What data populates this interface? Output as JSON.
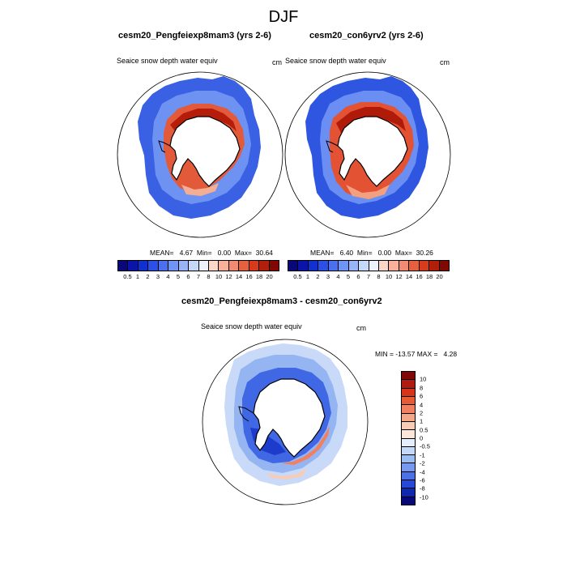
{
  "figure": {
    "season": "DJF"
  },
  "panels": [
    {
      "title": "cesm20_Pengfeiexp8mam3 (yrs 2-6)",
      "variable": "Seaice snow depth water equiv",
      "units": "cm",
      "stats": "MEAN=   4.67  Min=   0.00  Max=  30.64"
    },
    {
      "title": "cesm20_con6yrv2 (yrs 2-6)",
      "variable": "Seaice snow depth water equiv",
      "units": "cm",
      "stats": "MEAN=   6.40  Min=   0.00  Max=  30.26"
    }
  ],
  "diff_panel": {
    "title": "cesm20_Pengfeiexp8mam3 - cesm20_con6yrv2",
    "variable": "Seaice snow depth water equiv",
    "units": "cm",
    "stats": "MIN = -13.57 MAX =   4.28"
  },
  "colorbar_abs": {
    "ticks": [
      "0.5",
      "1",
      "2",
      "3",
      "4",
      "5",
      "6",
      "7",
      "8",
      "10",
      "12",
      "14",
      "16",
      "18",
      "20"
    ],
    "colors": [
      "#08087a",
      "#0a14a8",
      "#1030d0",
      "#2a50e6",
      "#4a70f0",
      "#7094f4",
      "#98b4f6",
      "#c4d8fa",
      "#eef2fc",
      "#fcd8c8",
      "#f8b09a",
      "#f08a70",
      "#e6603e",
      "#d83a1c",
      "#b01e0c",
      "#800800"
    ]
  },
  "colorbar_diff": {
    "ticks": [
      "10",
      "8",
      "6",
      "4",
      "2",
      "1",
      "0.5",
      "0",
      "-0.5",
      "-1",
      "-2",
      "-4",
      "-6",
      "-8",
      "-10"
    ],
    "colors": [
      "#800808",
      "#b01a10",
      "#d8341c",
      "#e85a34",
      "#f08060",
      "#f4a888",
      "#f8ccb6",
      "#fce6da",
      "#e4eefc",
      "#c4d8f8",
      "#9cbcf4",
      "#7898ee",
      "#4c70e6",
      "#2848d8",
      "#1028b0",
      "#08087a"
    ]
  }
}
